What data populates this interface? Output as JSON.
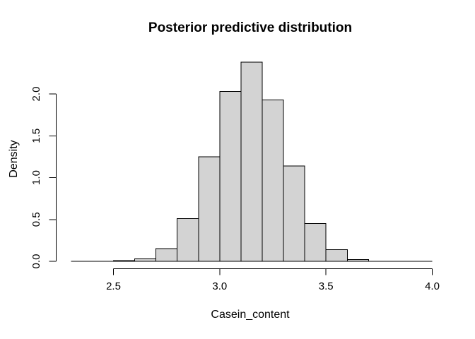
{
  "window": {
    "background_color": "#ffffff"
  },
  "chart_data": {
    "type": "bar",
    "subtype": "histogram",
    "title": "Posterior predictive distribution",
    "xlabel": "Casein_content",
    "ylabel": "Density",
    "bin_edges": [
      2.3,
      2.4,
      2.5,
      2.6,
      2.7,
      2.8,
      2.9,
      3.0,
      3.1,
      3.2,
      3.3,
      3.4,
      3.5,
      3.6,
      3.7,
      3.8,
      3.9,
      4.0
    ],
    "densities": [
      0,
      0,
      0.01,
      0.03,
      0.15,
      0.51,
      1.25,
      2.03,
      2.38,
      1.93,
      1.14,
      0.45,
      0.14,
      0.02,
      0,
      0,
      0
    ],
    "x_ticks": [
      2.5,
      3.0,
      3.5,
      4.0
    ],
    "x_tick_labels": [
      "2.5",
      "3.0",
      "3.5",
      "4.0"
    ],
    "y_ticks": [
      0.0,
      0.5,
      1.0,
      1.5,
      2.0
    ],
    "y_tick_labels": [
      "0.0",
      "0.5",
      "1.0",
      "1.5",
      "2.0"
    ],
    "xlim": [
      2.3,
      4.0
    ],
    "ylim": [
      0,
      2.38
    ],
    "grid": "off",
    "legend": "none",
    "bar_fill": "#d3d3d3",
    "bar_stroke": "#000000",
    "axis_color": "#000000",
    "text_color": "#000000"
  }
}
